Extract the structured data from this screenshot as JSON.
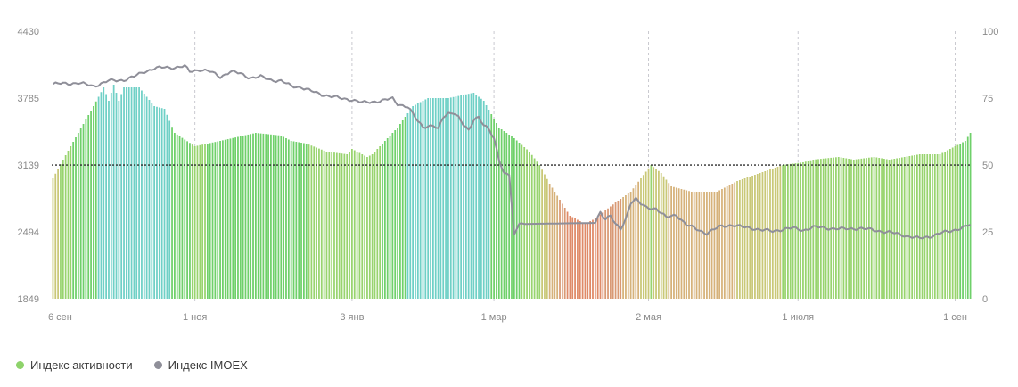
{
  "chart_data": {
    "type": "bar+line",
    "x_ticks": [
      "6 сен",
      "1 ноя",
      "3 янв",
      "1 мар",
      "2 мая",
      "1 июля",
      "1 сен"
    ],
    "y_left_ticks": [
      "4430",
      "3785",
      "3139",
      "2494",
      "1849"
    ],
    "y_left_range": [
      1849,
      4430
    ],
    "y_right_ticks": [
      "100",
      "75",
      "50",
      "25",
      "0"
    ],
    "y_right_range": [
      0,
      100
    ],
    "reference_line_y_left": 3139,
    "grid": "vertical dashed at month ticks",
    "legend_position": "bottom-left",
    "series": [
      {
        "name": "Индекс активности",
        "type": "bar",
        "axis": "right",
        "color": "#8ed36b",
        "keypoints": [
          [
            0,
            45
          ],
          [
            4,
            52
          ],
          [
            10,
            62
          ],
          [
            16,
            72
          ],
          [
            20,
            79
          ],
          [
            22,
            74
          ],
          [
            24,
            80
          ],
          [
            26,
            74
          ],
          [
            28,
            79
          ],
          [
            34,
            79
          ],
          [
            40,
            72
          ],
          [
            44,
            71
          ],
          [
            48,
            62
          ],
          [
            56,
            57
          ],
          [
            66,
            59
          ],
          [
            80,
            62
          ],
          [
            90,
            61
          ],
          [
            94,
            59
          ],
          [
            100,
            58
          ],
          [
            108,
            55
          ],
          [
            116,
            54
          ],
          [
            118,
            56
          ],
          [
            124,
            53
          ],
          [
            126,
            54
          ],
          [
            130,
            58
          ],
          [
            136,
            64
          ],
          [
            142,
            72
          ],
          [
            148,
            75
          ],
          [
            156,
            75
          ],
          [
            166,
            77
          ],
          [
            170,
            74
          ],
          [
            176,
            64
          ],
          [
            182,
            60
          ],
          [
            188,
            55
          ],
          [
            192,
            50
          ],
          [
            196,
            43
          ],
          [
            200,
            37
          ],
          [
            204,
            31
          ],
          [
            210,
            28
          ],
          [
            214,
            30
          ],
          [
            218,
            33
          ],
          [
            222,
            36
          ],
          [
            228,
            40
          ],
          [
            232,
            45
          ],
          [
            236,
            50
          ],
          [
            240,
            47
          ],
          [
            244,
            42
          ],
          [
            252,
            40
          ],
          [
            262,
            40
          ],
          [
            270,
            44
          ],
          [
            276,
            46
          ],
          [
            282,
            48
          ],
          [
            288,
            50
          ],
          [
            296,
            51
          ],
          [
            300,
            52
          ],
          [
            310,
            53
          ],
          [
            316,
            52
          ],
          [
            324,
            53
          ],
          [
            330,
            52
          ],
          [
            336,
            53
          ],
          [
            342,
            54
          ],
          [
            350,
            54
          ],
          [
            356,
            57
          ],
          [
            360,
            59
          ],
          [
            362,
            62
          ]
        ],
        "n_bars": 363
      },
      {
        "name": "Индекс IMOEX",
        "type": "line",
        "axis": "left",
        "color": "#8f8f99",
        "keypoints": [
          [
            0,
            3920
          ],
          [
            10,
            3930
          ],
          [
            16,
            3900
          ],
          [
            22,
            3950
          ],
          [
            28,
            3960
          ],
          [
            32,
            3990
          ],
          [
            36,
            4040
          ],
          [
            40,
            4070
          ],
          [
            44,
            4080
          ],
          [
            48,
            4080
          ],
          [
            52,
            4090
          ],
          [
            54,
            4040
          ],
          [
            58,
            4060
          ],
          [
            62,
            4040
          ],
          [
            66,
            3990
          ],
          [
            70,
            4040
          ],
          [
            74,
            4020
          ],
          [
            78,
            3980
          ],
          [
            82,
            3990
          ],
          [
            86,
            3960
          ],
          [
            90,
            3950
          ],
          [
            94,
            3900
          ],
          [
            98,
            3890
          ],
          [
            102,
            3850
          ],
          [
            106,
            3820
          ],
          [
            110,
            3800
          ],
          [
            114,
            3780
          ],
          [
            118,
            3770
          ],
          [
            122,
            3740
          ],
          [
            126,
            3750
          ],
          [
            130,
            3760
          ],
          [
            134,
            3780
          ],
          [
            136,
            3730
          ],
          [
            140,
            3700
          ],
          [
            144,
            3560
          ],
          [
            146,
            3510
          ],
          [
            150,
            3520
          ],
          [
            152,
            3480
          ],
          [
            154,
            3600
          ],
          [
            156,
            3640
          ],
          [
            158,
            3650
          ],
          [
            160,
            3600
          ],
          [
            162,
            3520
          ],
          [
            164,
            3470
          ],
          [
            166,
            3580
          ],
          [
            168,
            3610
          ],
          [
            170,
            3520
          ],
          [
            172,
            3480
          ],
          [
            174,
            3390
          ],
          [
            176,
            3200
          ],
          [
            178,
            3060
          ],
          [
            180,
            3050
          ],
          [
            182,
            2450
          ],
          [
            184,
            2580
          ],
          [
            186,
            2570
          ],
          [
            214,
            2580
          ],
          [
            216,
            2690
          ],
          [
            218,
            2620
          ],
          [
            220,
            2650
          ],
          [
            222,
            2560
          ],
          [
            224,
            2520
          ],
          [
            226,
            2620
          ],
          [
            228,
            2780
          ],
          [
            230,
            2810
          ],
          [
            232,
            2760
          ],
          [
            234,
            2730
          ],
          [
            238,
            2720
          ],
          [
            242,
            2630
          ],
          [
            246,
            2660
          ],
          [
            250,
            2560
          ],
          [
            254,
            2520
          ],
          [
            258,
            2480
          ],
          [
            262,
            2530
          ],
          [
            264,
            2550
          ],
          [
            268,
            2560
          ],
          [
            272,
            2540
          ],
          [
            276,
            2530
          ],
          [
            280,
            2510
          ],
          [
            284,
            2500
          ],
          [
            288,
            2520
          ],
          [
            292,
            2530
          ],
          [
            296,
            2510
          ],
          [
            300,
            2540
          ],
          [
            306,
            2530
          ],
          [
            312,
            2520
          ],
          [
            318,
            2530
          ],
          [
            324,
            2510
          ],
          [
            330,
            2490
          ],
          [
            336,
            2460
          ],
          [
            342,
            2430
          ],
          [
            346,
            2450
          ],
          [
            350,
            2480
          ],
          [
            354,
            2500
          ],
          [
            358,
            2530
          ],
          [
            362,
            2560
          ]
        ]
      }
    ]
  },
  "legend": {
    "activity_label": "Индекс активности",
    "activity_color": "#8ed36b",
    "imoex_label": "Индекс IMOEX",
    "imoex_color": "#8f8f99"
  }
}
